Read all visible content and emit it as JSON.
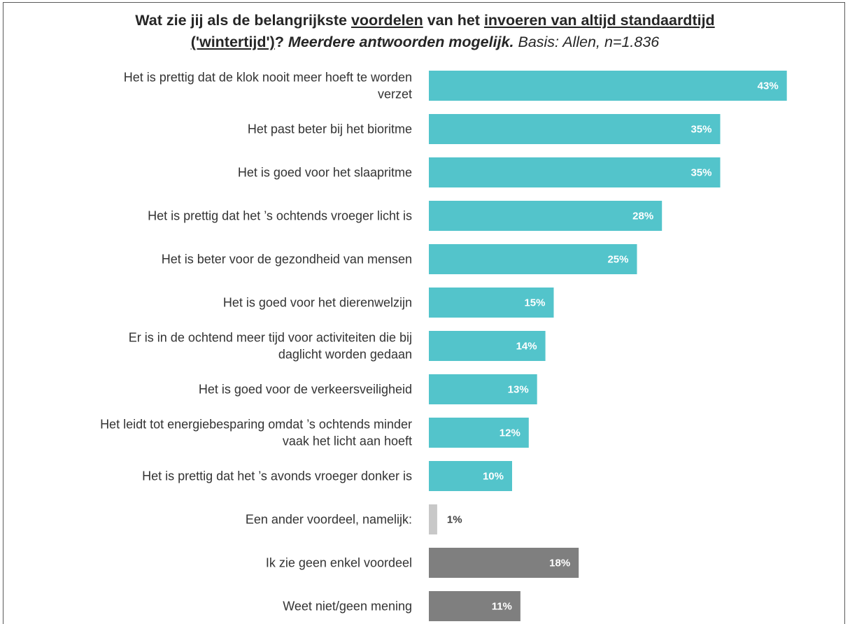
{
  "title": {
    "line1": {
      "p1": "Wat zie jij als de belangrijkste ",
      "u1": "voordelen",
      "p2": " van het ",
      "u2": "invoeren van altijd standaardtijd"
    },
    "line2": {
      "u3": "('wintertijd')",
      "p3": "? ",
      "italic_bold": "Meerdere antwoorden mogelijk.",
      "italic": " Basis: Allen, n=1.836"
    }
  },
  "colors": {
    "teal": "#53C4CB",
    "light_gray": "#C8C8C8",
    "dark_gray": "#7F7F7F",
    "label_inside": "#FFFFFF",
    "label_outside": "#404040"
  },
  "chart_data": {
    "type": "bar",
    "orientation": "horizontal",
    "value_unit": "%",
    "xlim": [
      0,
      50
    ],
    "grid": false,
    "legend": "none",
    "categories": [
      [
        "Het is prettig dat de klok nooit meer hoeft te worden",
        "verzet"
      ],
      [
        "Het past beter bij het bioritme"
      ],
      [
        "Het is goed voor het slaapritme"
      ],
      [
        "Het is prettig dat het ’s ochtends vroeger licht is"
      ],
      [
        "Het is beter voor de gezondheid van mensen"
      ],
      [
        "Het is goed voor het dierenwelzijn"
      ],
      [
        "Er is in de ochtend meer tijd voor activiteiten die bij",
        "daglicht worden gedaan"
      ],
      [
        "Het is goed voor de verkeersveiligheid"
      ],
      [
        "Het leidt tot energiebesparing omdat ’s ochtends minder",
        "vaak het licht aan hoeft"
      ],
      [
        "Het is prettig dat het ’s avonds vroeger donker is"
      ],
      [
        "Een ander voordeel, namelijk:"
      ],
      [
        "Ik zie geen enkel voordeel"
      ],
      [
        "Weet niet/geen mening"
      ]
    ],
    "values": [
      43,
      35,
      35,
      28,
      25,
      15,
      14,
      13,
      12,
      10,
      1,
      18,
      11
    ],
    "value_labels": [
      "43%",
      "35%",
      "35%",
      "28%",
      "25%",
      "15%",
      "14%",
      "13%",
      "12%",
      "10%",
      "1%",
      "18%",
      "11%"
    ],
    "bar_colors": [
      "teal",
      "teal",
      "teal",
      "teal",
      "teal",
      "teal",
      "teal",
      "teal",
      "teal",
      "teal",
      "light_gray",
      "dark_gray",
      "dark_gray"
    ]
  }
}
